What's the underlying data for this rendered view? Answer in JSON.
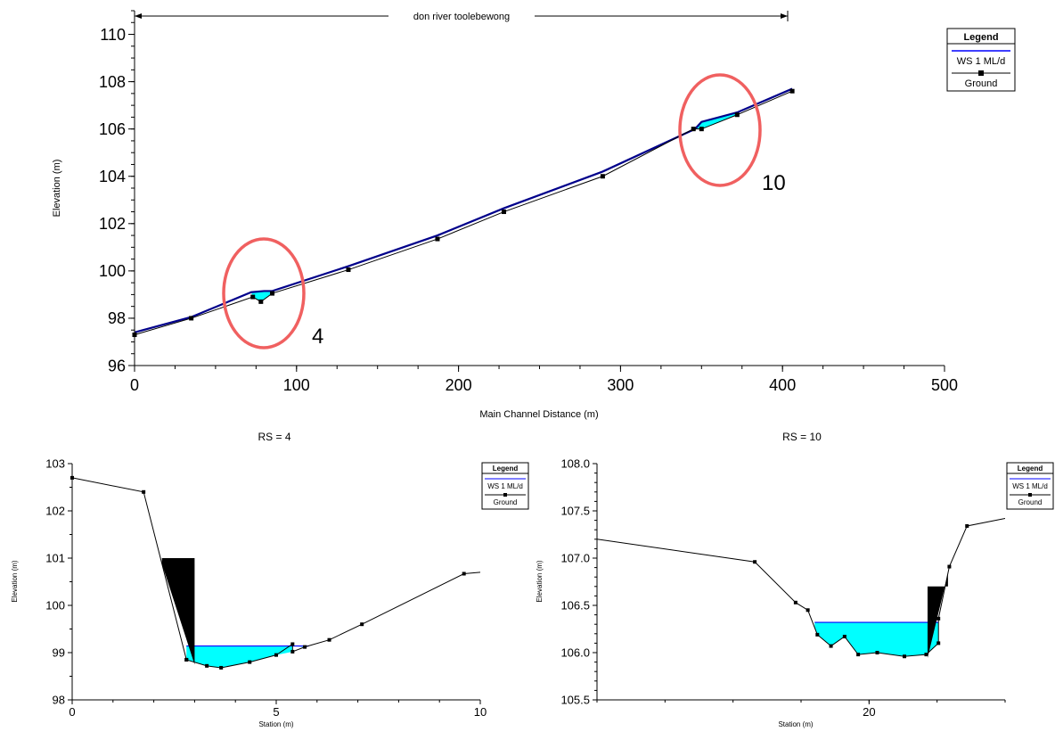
{
  "colors": {
    "water_surface": "#00008b",
    "water_fill": "#00ffff",
    "ground": "#000000",
    "levee": "#000000",
    "annotation_circle": "#f06060"
  },
  "chart_data": [
    {
      "type": "line",
      "name": "profile",
      "reach_label": "don river toolebewong",
      "reach_range": [
        0,
        406
      ],
      "xlabel": "Main Channel Distance (m)",
      "ylabel": "Elevation (m)",
      "xlim": [
        0,
        500
      ],
      "ylim": [
        96,
        111
      ],
      "xticks": [
        0,
        100,
        200,
        300,
        400,
        500
      ],
      "yticks": [
        96,
        98,
        100,
        102,
        104,
        106,
        108,
        110
      ],
      "legend": {
        "title": "Legend",
        "entries": [
          "WS 1 ML/d",
          "Ground"
        ],
        "position": "top-right"
      },
      "series": [
        {
          "name": "WS 1 ML/d",
          "x": [
            0,
            35,
            72,
            80,
            85,
            132,
            187,
            228,
            289,
            346,
            350,
            372,
            406
          ],
          "y": [
            97.4,
            98.05,
            99.1,
            99.15,
            99.15,
            100.2,
            101.5,
            102.65,
            104.2,
            106.0,
            106.3,
            106.7,
            107.7
          ]
        },
        {
          "name": "Ground",
          "x": [
            0,
            35,
            73,
            78,
            85,
            132,
            187,
            228,
            289,
            345,
            350,
            372,
            406
          ],
          "y": [
            97.3,
            98.0,
            98.9,
            98.7,
            99.05,
            100.05,
            101.35,
            102.5,
            104.0,
            106.0,
            106.0,
            106.6,
            107.6
          ]
        }
      ],
      "annotations": [
        {
          "label": "4",
          "x": 80,
          "y": 98.9
        },
        {
          "label": "10",
          "x": 362,
          "y": 105.8
        }
      ]
    },
    {
      "type": "line",
      "name": "xs4",
      "title": "RS = 4",
      "xlabel": "Station (m)",
      "ylabel": "Elevation (m)",
      "xlim": [
        0,
        10
      ],
      "ylim": [
        98,
        103
      ],
      "xticks": [
        0,
        5,
        10
      ],
      "yticks": [
        98,
        99,
        100,
        101,
        102,
        103
      ],
      "legend": {
        "title": "Legend",
        "entries": [
          "WS 1 ML/d",
          "Ground"
        ],
        "position": "top-right"
      },
      "ground": {
        "x": [
          0,
          1.75,
          2.8,
          2.8,
          3.3,
          3.65,
          4.35,
          5.0,
          5.4,
          5.4,
          5.7,
          6.3,
          7.1,
          9.6,
          10
        ],
        "y": [
          102.7,
          102.4,
          98.85,
          98.85,
          98.72,
          98.68,
          98.8,
          98.95,
          99.18,
          99.02,
          99.12,
          99.27,
          99.6,
          100.67,
          100.7
        ]
      },
      "water_surface": {
        "elevation": 99.14,
        "x_range": [
          2.8,
          5.8
        ]
      },
      "levee": {
        "x_left": 2.2,
        "x_right": 3.0,
        "top": 101.0
      }
    },
    {
      "type": "line",
      "name": "xs10",
      "title": "RS = 10",
      "xlabel": "Station (m)",
      "ylabel": "Elevation (m)",
      "xlim": [
        10,
        25
      ],
      "ylim": [
        105.5,
        108.0
      ],
      "xticks": [
        20
      ],
      "yticks": [
        105.5,
        106.0,
        106.5,
        107.0,
        107.5,
        108.0
      ],
      "legend": {
        "title": "Legend",
        "entries": [
          "WS 1 ML/d",
          "Ground"
        ],
        "position": "top-right"
      },
      "ground": {
        "x": [
          10,
          15.8,
          17.3,
          17.75,
          18.1,
          18.6,
          19.1,
          19.6,
          20.3,
          21.3,
          22.1,
          22.55,
          22.55,
          22.95,
          23.6,
          25
        ],
        "y": [
          107.2,
          106.96,
          106.53,
          106.45,
          106.19,
          106.07,
          106.17,
          105.98,
          106.0,
          105.96,
          105.98,
          106.1,
          106.36,
          106.91,
          107.34,
          107.42
        ]
      },
      "water_surface": {
        "elevation": 106.32,
        "x_range": [
          18.0,
          22.55
        ]
      },
      "levee": {
        "x_left": 22.15,
        "x_right": 22.9,
        "top": 106.7
      }
    }
  ]
}
